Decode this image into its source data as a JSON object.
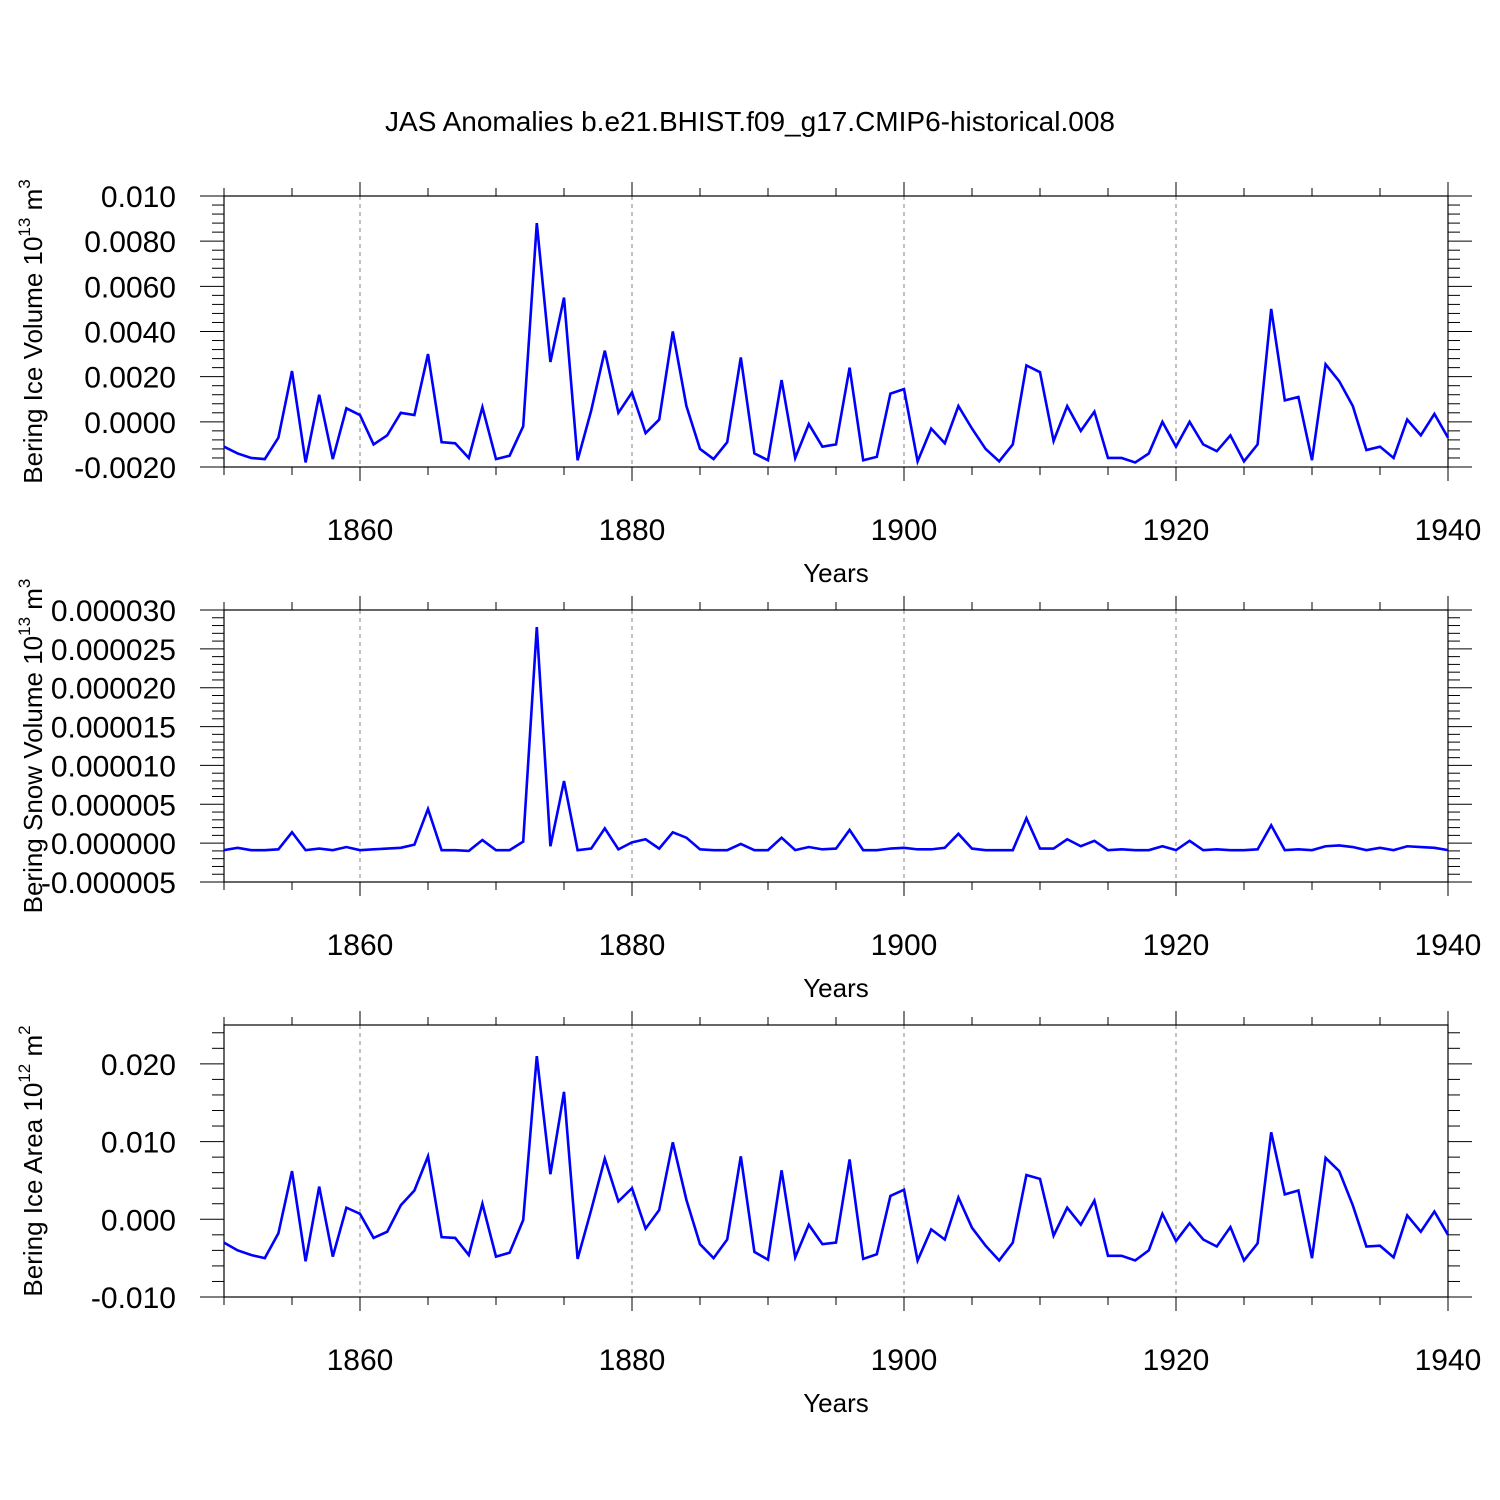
{
  "title": "JAS Anomalies b.e21.BHIST.f09_g17.CMIP6-historical.008",
  "line_color": "#0000ff",
  "chart_data": [
    {
      "type": "line",
      "id": "ice-volume",
      "ylabel_main": "Bering Ice Volume 10",
      "ylabel_exp": "13",
      "ylabel_unit": " m",
      "ylabel_unit_exp": "3",
      "xlabel": "Years",
      "xlim": [
        1850,
        1940
      ],
      "ylim": [
        -0.002,
        0.01
      ],
      "xticks": [
        1860,
        1880,
        1900,
        1920,
        1940
      ],
      "xtick_labels": [
        "1860",
        "1880",
        "1900",
        "1920",
        "1940"
      ],
      "yticks": [
        -0.002,
        0.0,
        0.002,
        0.004,
        0.006,
        0.008,
        0.01
      ],
      "ytick_labels": [
        "-0.0020",
        "0.0000",
        "0.0020",
        "0.0040",
        "0.0060",
        "0.0080",
        "0.010"
      ],
      "grid": "x-dashed",
      "series": [
        {
          "name": "Bering Ice Volume",
          "x_start": 1850,
          "values": [
            -0.0011,
            -0.0014,
            -0.0016,
            -0.00165,
            -0.0007,
            0.00225,
            -0.0018,
            0.0012,
            -0.00165,
            0.0006,
            0.0003,
            -0.001,
            -0.0006,
            0.0004,
            0.0003,
            0.003,
            -0.0009,
            -0.00095,
            -0.0016,
            0.00065,
            -0.00165,
            -0.0015,
            -0.0002,
            0.0088,
            0.00265,
            0.0055,
            -0.0017,
            0.0005,
            0.00315,
            0.0004,
            0.0013,
            -0.0005,
            0.0001,
            0.004,
            0.0007,
            -0.0012,
            -0.00165,
            -0.0009,
            0.00285,
            -0.0014,
            -0.0017,
            0.00185,
            -0.0016,
            -0.0001,
            -0.0011,
            -0.001,
            0.0024,
            -0.0017,
            -0.00155,
            0.00125,
            0.00145,
            -0.00175,
            -0.0003,
            -0.00095,
            0.0007,
            -0.0003,
            -0.0012,
            -0.00175,
            -0.001,
            0.0025,
            0.0022,
            -0.00085,
            0.0007,
            -0.0004,
            0.00045,
            -0.0016,
            -0.0016,
            -0.0018,
            -0.0014,
            0.0,
            -0.0011,
            0.0,
            -0.001,
            -0.0013,
            -0.0006,
            -0.00175,
            -0.001,
            0.005,
            0.00095,
            0.0011,
            -0.0017,
            0.00255,
            0.0018,
            0.0007,
            -0.00125,
            -0.0011,
            -0.0016,
            0.0001,
            -0.0006,
            0.00035,
            -0.0007
          ]
        }
      ]
    },
    {
      "type": "line",
      "id": "snow-volume",
      "ylabel_main": "Bering Snow Volume 10",
      "ylabel_exp": "13",
      "ylabel_unit": " m",
      "ylabel_unit_exp": "3",
      "xlabel": "Years",
      "xlim": [
        1850,
        1940
      ],
      "ylim": [
        -5e-06,
        3e-05
      ],
      "xticks": [
        1860,
        1880,
        1900,
        1920,
        1940
      ],
      "xtick_labels": [
        "1860",
        "1880",
        "1900",
        "1920",
        "1940"
      ],
      "yticks": [
        -5e-06,
        0.0,
        5e-06,
        1e-05,
        1.5e-05,
        2e-05,
        2.5e-05,
        3e-05
      ],
      "ytick_labels": [
        "-0.000005",
        "0.000000",
        "0.000005",
        "0.000010",
        "0.000015",
        "0.000020",
        "0.000025",
        "0.000030"
      ],
      "grid": "x-dashed",
      "series": [
        {
          "name": "Bering Snow Volume",
          "x_start": 1850,
          "values": [
            -9e-07,
            -6e-07,
            -9e-07,
            -9e-07,
            -8e-07,
            1.4e-06,
            -9e-07,
            -7e-07,
            -9e-07,
            -5e-07,
            -9e-07,
            -8e-07,
            -7e-07,
            -6e-07,
            -2e-07,
            4.4e-06,
            -9e-07,
            -9e-07,
            -1e-06,
            4e-07,
            -9e-07,
            -9e-07,
            2e-07,
            2.78e-05,
            -4e-07,
            8e-06,
            -9e-07,
            -7e-07,
            1.9e-06,
            -8e-07,
            1e-07,
            5e-07,
            -7e-07,
            1.4e-06,
            7e-07,
            -8e-07,
            -9e-07,
            -9e-07,
            -1e-07,
            -9e-07,
            -9e-07,
            7e-07,
            -9e-07,
            -5e-07,
            -8e-07,
            -7e-07,
            1.7e-06,
            -9e-07,
            -9e-07,
            -7e-07,
            -6e-07,
            -8e-07,
            -8e-07,
            -6e-07,
            1.2e-06,
            -7e-07,
            -9e-07,
            -9e-07,
            -9e-07,
            3.2e-06,
            -7e-07,
            -7e-07,
            5e-07,
            -4e-07,
            3e-07,
            -9e-07,
            -8e-07,
            -9e-07,
            -9e-07,
            -4e-07,
            -9e-07,
            3e-07,
            -9e-07,
            -8e-07,
            -9e-07,
            -9e-07,
            -8e-07,
            2.3e-06,
            -9e-07,
            -8e-07,
            -9e-07,
            -4e-07,
            -3e-07,
            -5e-07,
            -9e-07,
            -6e-07,
            -9e-07,
            -4e-07,
            -5e-07,
            -6e-07,
            -9e-07
          ]
        }
      ]
    },
    {
      "type": "line",
      "id": "ice-area",
      "ylabel_main": "Bering Ice Area 10",
      "ylabel_exp": "12",
      "ylabel_unit": " m",
      "ylabel_unit_exp": "2",
      "xlabel": "Years",
      "xlim": [
        1850,
        1940
      ],
      "ylim": [
        -0.01,
        0.025
      ],
      "xticks": [
        1860,
        1880,
        1900,
        1920,
        1940
      ],
      "xtick_labels": [
        "1860",
        "1880",
        "1900",
        "1920",
        "1940"
      ],
      "yticks": [
        -0.01,
        0.0,
        0.01,
        0.02
      ],
      "ytick_labels": [
        "-0.010",
        "0.000",
        "0.010",
        "0.020"
      ],
      "grid": "x-dashed",
      "series": [
        {
          "name": "Bering Ice Area",
          "x_start": 1850,
          "values": [
            -0.003,
            -0.004,
            -0.0046,
            -0.005,
            -0.0018,
            0.0062,
            -0.0054,
            0.0042,
            -0.0048,
            0.0015,
            0.0007,
            -0.0024,
            -0.0016,
            0.0018,
            0.0037,
            0.0081,
            -0.0023,
            -0.0024,
            -0.0046,
            0.002,
            -0.0048,
            -0.0043,
            -0.0001,
            0.021,
            0.0058,
            0.0164,
            -0.0051,
            0.0012,
            0.0078,
            0.0023,
            0.004,
            -0.0012,
            0.0012,
            0.0099,
            0.0025,
            -0.0032,
            -0.005,
            -0.0026,
            0.0081,
            -0.0042,
            -0.0052,
            0.0063,
            -0.0049,
            -0.0007,
            -0.0032,
            -0.003,
            0.0077,
            -0.0051,
            -0.0045,
            0.003,
            0.0038,
            -0.0053,
            -0.0013,
            -0.0026,
            0.0028,
            -0.0011,
            -0.0034,
            -0.0053,
            -0.003,
            0.0057,
            0.0052,
            -0.0021,
            0.0015,
            -0.0007,
            0.0024,
            -0.0047,
            -0.0047,
            -0.0053,
            -0.004,
            0.0007,
            -0.0028,
            -0.0005,
            -0.0026,
            -0.0035,
            -0.001,
            -0.0053,
            -0.0031,
            0.0112,
            0.0032,
            0.0037,
            -0.005,
            0.0079,
            0.0062,
            0.0018,
            -0.0035,
            -0.0034,
            -0.0049,
            0.0005,
            -0.0016,
            0.001,
            -0.002
          ]
        }
      ]
    }
  ]
}
